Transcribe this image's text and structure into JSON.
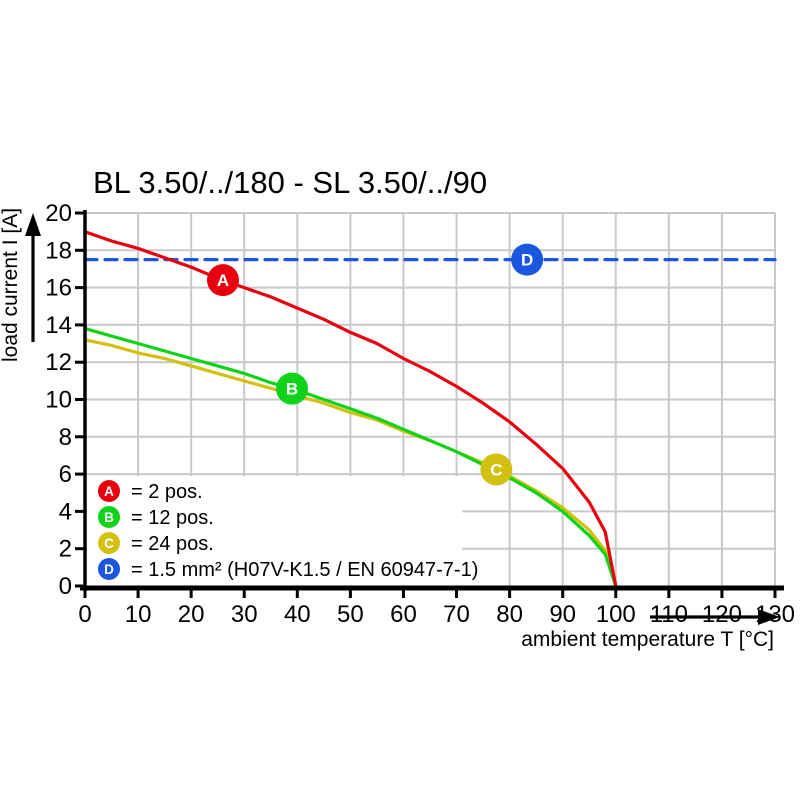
{
  "chart_data": {
    "type": "line",
    "title": "BL 3.50/../180 - SL 3.50/../90",
    "xlabel": "ambient temperature T [°C]",
    "ylabel": "load current I [A]",
    "xlim": [
      0,
      130
    ],
    "ylim": [
      0,
      20
    ],
    "xticks": [
      0,
      10,
      20,
      30,
      40,
      50,
      60,
      70,
      80,
      90,
      100,
      110,
      120,
      130
    ],
    "yticks": [
      0,
      2,
      4,
      6,
      8,
      10,
      12,
      14,
      16,
      18,
      20
    ],
    "grid": true,
    "grid_color": "#c9c9c9",
    "axis_color": "#000000",
    "series": [
      {
        "id": "D",
        "label": "1.5 mm² (H07V-K1.5 / EN 60947-7-1)",
        "color": "#1a56df",
        "style": "dashed",
        "marker_t": 83.3,
        "x": [
          0,
          130
        ],
        "y": [
          17.5,
          17.5
        ]
      },
      {
        "id": "C",
        "label": "24 pos.",
        "color": "#d3c112",
        "style": "solid",
        "marker_t": 77.5,
        "x": [
          0,
          5,
          10,
          15,
          20,
          25,
          30,
          35,
          40,
          45,
          50,
          55,
          60,
          65,
          70,
          75,
          80,
          85,
          90,
          95,
          98,
          100
        ],
        "y": [
          13.2,
          12.9,
          12.5,
          12.2,
          11.8,
          11.4,
          11.0,
          10.6,
          10.2,
          9.8,
          9.3,
          8.9,
          8.3,
          7.8,
          7.2,
          6.6,
          5.9,
          5.1,
          4.2,
          3.0,
          1.9,
          0
        ]
      },
      {
        "id": "B",
        "label": "12 pos.",
        "color": "#0ed319",
        "style": "solid",
        "marker_t": 39,
        "x": [
          0,
          5,
          10,
          15,
          20,
          25,
          30,
          35,
          40,
          45,
          50,
          55,
          60,
          65,
          70,
          75,
          80,
          85,
          90,
          95,
          98,
          100
        ],
        "y": [
          13.8,
          13.4,
          13.0,
          12.6,
          12.2,
          11.8,
          11.4,
          10.9,
          10.5,
          10.0,
          9.5,
          9.0,
          8.4,
          7.8,
          7.2,
          6.5,
          5.8,
          5.0,
          4.0,
          2.7,
          1.7,
          0
        ]
      },
      {
        "id": "A",
        "label": "2 pos.",
        "color": "#e8000f",
        "style": "solid",
        "marker_t": 26,
        "x": [
          0,
          5,
          10,
          15,
          20,
          25,
          30,
          35,
          40,
          45,
          50,
          55,
          60,
          65,
          70,
          75,
          80,
          85,
          90,
          95,
          98,
          100
        ],
        "y": [
          19.0,
          18.5,
          18.1,
          17.6,
          17.1,
          16.5,
          16.0,
          15.5,
          14.9,
          14.3,
          13.6,
          13.0,
          12.2,
          11.5,
          10.7,
          9.8,
          8.8,
          7.6,
          6.3,
          4.5,
          2.9,
          0
        ]
      }
    ],
    "legend": {
      "position": "bottom-left",
      "items": [
        {
          "letter": "A",
          "label": "= 2 pos."
        },
        {
          "letter": "B",
          "label": "= 12 pos."
        },
        {
          "letter": "C",
          "label": "= 24 pos."
        },
        {
          "letter": "D",
          "label": "= 1.5 mm² (H07V-K1.5 / EN 60947-7-1)"
        }
      ]
    }
  }
}
